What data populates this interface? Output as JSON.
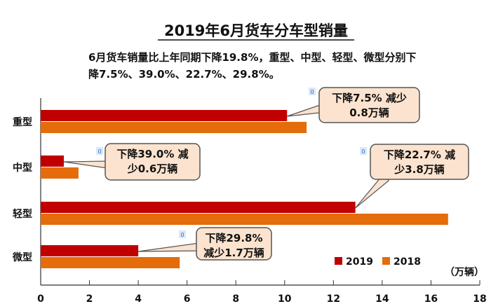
{
  "chart_data": {
    "type": "bar",
    "orientation": "horizontal",
    "title": "2019年6月货车分车型销量",
    "subtitle_lines": [
      "6月货车销量比上年同期下降19.8%，重型、中型、轻型、微型分别下",
      "降7.5%、39.0%、22.7%、29.8%。"
    ],
    "categories": [
      "重型",
      "中型",
      "轻型",
      "微型"
    ],
    "series": [
      {
        "name": "2019",
        "color": "#c00000",
        "values": [
          10.1,
          0.95,
          12.9,
          4.0
        ]
      },
      {
        "name": "2018",
        "color": "#e46c0a",
        "values": [
          10.9,
          1.55,
          16.7,
          5.7
        ]
      }
    ],
    "xlim": [
      0,
      18
    ],
    "xticks": [
      "0",
      "2",
      "4",
      "6",
      "8",
      "10",
      "12",
      "14",
      "16",
      "18"
    ],
    "unit_label": "（万辆）",
    "legend_position": "bottom-right",
    "grid": false,
    "annotations": [
      {
        "category": "重型",
        "lines": [
          "下降7.5% 减少",
          "0.8万辆"
        ],
        "marker": "0"
      },
      {
        "category": "中型",
        "lines": [
          "下降39.0% 减",
          "少0.6万辆"
        ],
        "marker": "0"
      },
      {
        "category": "轻型",
        "lines": [
          "下降22.7% 减",
          "少3.8万辆"
        ],
        "marker": "0"
      },
      {
        "category": "微型",
        "lines": [
          "下降29.8%",
          "减少1.7万辆"
        ],
        "marker": "0"
      }
    ],
    "callout_fill": "#fbe3cf"
  }
}
